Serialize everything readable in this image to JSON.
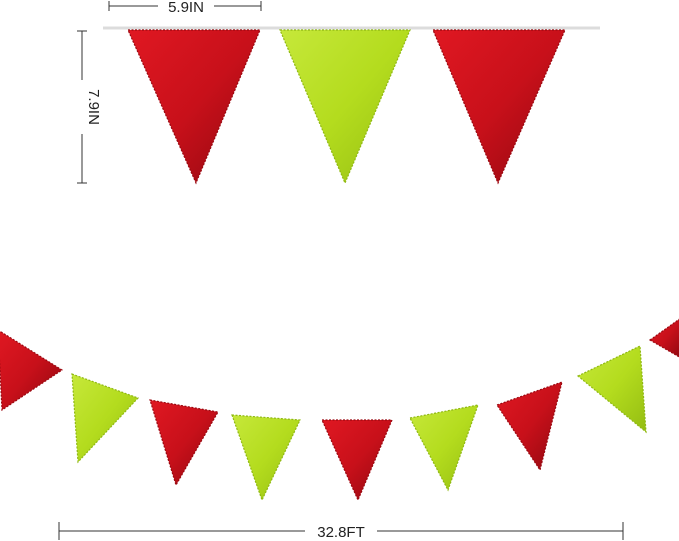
{
  "dimensions": {
    "flag_width": "5.9IN",
    "flag_height": "7.9IN",
    "total_length": "32.8FT"
  },
  "colors": {
    "red": "#c8101a",
    "red_dark": "#9a0810",
    "green": "#b4dc1e",
    "green_dark": "#8fb812",
    "string": "#dcdcdc"
  },
  "top_flags": [
    "red",
    "green",
    "red"
  ],
  "bottom_flags": [
    "red",
    "green",
    "red",
    "green",
    "red",
    "green",
    "red",
    "green",
    "red"
  ]
}
